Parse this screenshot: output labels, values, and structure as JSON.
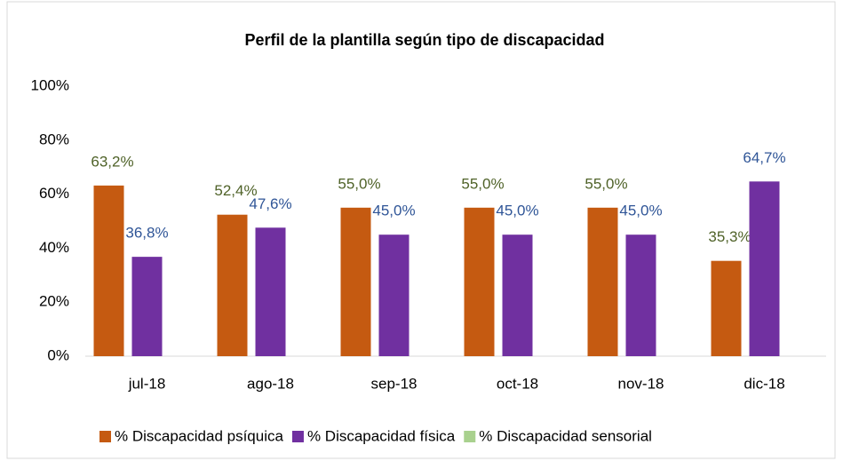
{
  "chart_data": {
    "type": "bar",
    "title": "Perfil de la plantilla según tipo de discapacidad",
    "categories": [
      "jul-18",
      "ago-18",
      "sep-18",
      "oct-18",
      "nov-18",
      "dic-18"
    ],
    "series": [
      {
        "name": "% Discapacidad psíquica",
        "color": "#c55a11",
        "label_color": "#4f6228",
        "values": [
          63.2,
          52.4,
          55.0,
          55.0,
          55.0,
          35.3
        ],
        "value_labels": [
          "63,2%",
          "52,4%",
          "55,0%",
          "55,0%",
          "55,0%",
          "35,3%"
        ]
      },
      {
        "name": "% Discapacidad física",
        "color": "#7030a0",
        "label_color": "#2f5597",
        "values": [
          36.8,
          47.6,
          45.0,
          45.0,
          45.0,
          64.7
        ],
        "value_labels": [
          "36,8%",
          "47,6%",
          "45,0%",
          "45,0%",
          "45,0%",
          "64,7%"
        ]
      },
      {
        "name": "% Discapacidad sensorial",
        "color": "#a9d18e",
        "values": [
          0,
          0,
          0,
          0,
          0,
          0
        ]
      }
    ],
    "ylim": [
      0,
      100
    ],
    "yticks": [
      {
        "value": 0,
        "label": "0%"
      },
      {
        "value": 20,
        "label": "20%"
      },
      {
        "value": 40,
        "label": "40%"
      },
      {
        "value": 60,
        "label": "60%"
      },
      {
        "value": 80,
        "label": "80%"
      },
      {
        "value": 100,
        "label": "100%"
      }
    ],
    "grid": false,
    "legend": "bottom"
  }
}
